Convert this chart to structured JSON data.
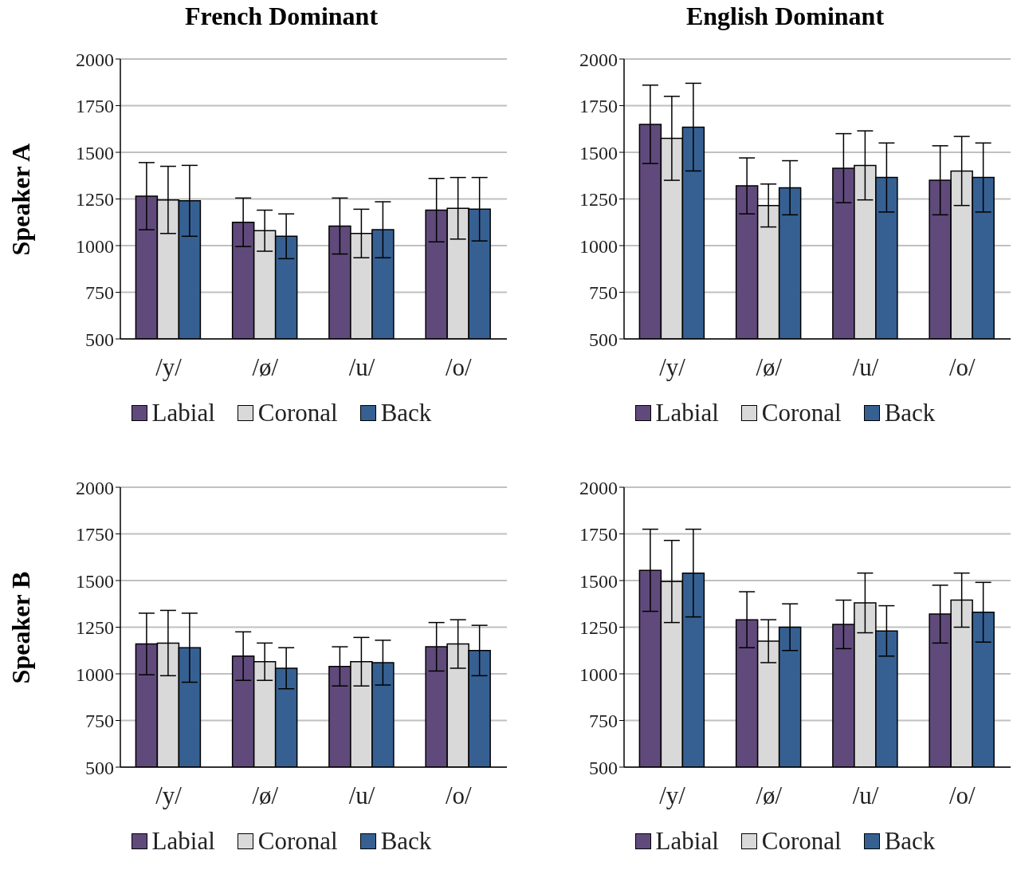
{
  "chart_data": [
    {
      "type": "bar",
      "title": "French Dominant",
      "ylabel": "Speaker A",
      "categories": [
        "/y/",
        "/ø/",
        "/u/",
        "/o/"
      ],
      "ylim": [
        500,
        2000
      ],
      "yticks": [
        500,
        750,
        1000,
        1250,
        1500,
        1750,
        2000
      ],
      "grid": "y",
      "legend": "bottom",
      "series": [
        {
          "name": "Labial",
          "color": "#604a7b",
          "values": [
            1265,
            1125,
            1105,
            1190
          ],
          "errors": [
            180,
            130,
            150,
            170
          ]
        },
        {
          "name": "Coronal",
          "color": "#d9d9d9",
          "values": [
            1245,
            1080,
            1065,
            1200
          ],
          "errors": [
            180,
            110,
            130,
            165
          ]
        },
        {
          "name": "Back",
          "color": "#366092",
          "values": [
            1240,
            1050,
            1085,
            1195
          ],
          "errors": [
            190,
            120,
            150,
            170
          ]
        }
      ]
    },
    {
      "type": "bar",
      "title": "English Dominant",
      "categories": [
        "/y/",
        "/ø/",
        "/u/",
        "/o/"
      ],
      "ylim": [
        500,
        2000
      ],
      "yticks": [
        500,
        750,
        1000,
        1250,
        1500,
        1750,
        2000
      ],
      "grid": "y",
      "legend": "bottom",
      "series": [
        {
          "name": "Labial",
          "color": "#604a7b",
          "values": [
            1650,
            1320,
            1415,
            1350
          ],
          "errors": [
            210,
            150,
            185,
            185
          ]
        },
        {
          "name": "Coronal",
          "color": "#d9d9d9",
          "values": [
            1575,
            1215,
            1430,
            1400
          ],
          "errors": [
            225,
            115,
            185,
            185
          ]
        },
        {
          "name": "Back",
          "color": "#366092",
          "values": [
            1635,
            1310,
            1365,
            1365
          ],
          "errors": [
            235,
            145,
            185,
            185
          ]
        }
      ]
    },
    {
      "type": "bar",
      "ylabel": "Speaker B",
      "categories": [
        "/y/",
        "/ø/",
        "/u/",
        "/o/"
      ],
      "ylim": [
        500,
        2000
      ],
      "yticks": [
        500,
        750,
        1000,
        1250,
        1500,
        1750,
        2000
      ],
      "grid": "y",
      "legend": "bottom",
      "series": [
        {
          "name": "Labial",
          "color": "#604a7b",
          "values": [
            1160,
            1095,
            1040,
            1145
          ],
          "errors": [
            165,
            130,
            105,
            130
          ]
        },
        {
          "name": "Coronal",
          "color": "#d9d9d9",
          "values": [
            1165,
            1065,
            1065,
            1160
          ],
          "errors": [
            175,
            100,
            130,
            130
          ]
        },
        {
          "name": "Back",
          "color": "#366092",
          "values": [
            1140,
            1030,
            1060,
            1125
          ],
          "errors": [
            185,
            110,
            120,
            135
          ]
        }
      ]
    },
    {
      "type": "bar",
      "categories": [
        "/y/",
        "/ø/",
        "/u/",
        "/o/"
      ],
      "ylim": [
        500,
        2000
      ],
      "yticks": [
        500,
        750,
        1000,
        1250,
        1500,
        1750,
        2000
      ],
      "grid": "y",
      "legend": "bottom",
      "series": [
        {
          "name": "Labial",
          "color": "#604a7b",
          "values": [
            1555,
            1290,
            1265,
            1320
          ],
          "errors": [
            220,
            150,
            130,
            155
          ]
        },
        {
          "name": "Coronal",
          "color": "#d9d9d9",
          "values": [
            1495,
            1175,
            1380,
            1395
          ],
          "errors": [
            220,
            115,
            160,
            145
          ]
        },
        {
          "name": "Back",
          "color": "#366092",
          "values": [
            1540,
            1250,
            1230,
            1330
          ],
          "errors": [
            235,
            125,
            135,
            160
          ]
        }
      ]
    }
  ]
}
